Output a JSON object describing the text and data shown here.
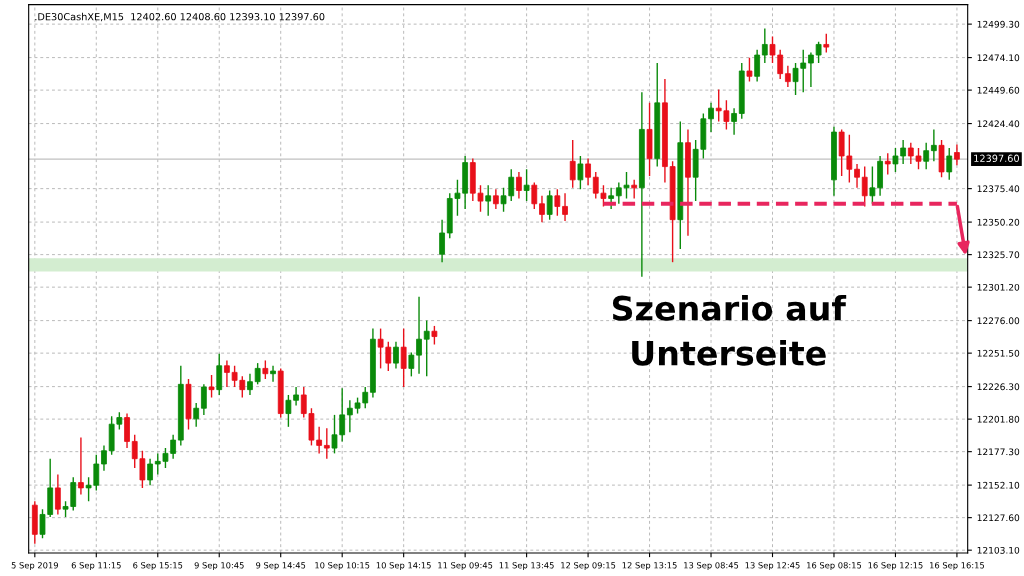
{
  "chart_data": {
    "type": "candlestick",
    "title": ".DE30CashXE,M15  12402.60 12408.60 12393.10 12397.60",
    "categories": [
      "5 Sep 2019",
      null,
      null,
      null,
      null,
      null,
      null,
      null,
      "6 Sep 11:15",
      null,
      null,
      null,
      null,
      null,
      null,
      null,
      "6 Sep 15:15",
      null,
      null,
      null,
      null,
      null,
      null,
      null,
      "9 Sep 10:45",
      null,
      null,
      null,
      null,
      null,
      null,
      null,
      "9 Sep 14:45",
      null,
      null,
      null,
      null,
      null,
      null,
      null,
      "10 Sep 10:15",
      null,
      null,
      null,
      null,
      null,
      null,
      null,
      "10 Sep 14:15",
      null,
      null,
      null,
      null,
      null,
      null,
      null,
      "11 Sep 09:45",
      null,
      null,
      null,
      null,
      null,
      null,
      null,
      "11 Sep 13:45",
      null,
      null,
      null,
      null,
      null,
      null,
      null,
      "12 Sep 09:15",
      null,
      null,
      null,
      null,
      null,
      null,
      null,
      "12 Sep 13:15",
      null,
      null,
      null,
      null,
      null,
      null,
      null,
      "13 Sep 08:45",
      null,
      null,
      null,
      null,
      null,
      null,
      null,
      "13 Sep 12:45",
      null,
      null,
      null,
      null,
      null,
      null,
      null,
      "16 Sep 08:15",
      null,
      null,
      null,
      null,
      null,
      null,
      null,
      "16 Sep 12:15",
      null,
      null,
      null,
      null,
      null,
      null,
      null,
      "16 Sep 16:15"
    ],
    "ohlc": [
      [
        12137,
        12140,
        12108,
        12115
      ],
      [
        12115,
        12134,
        12112,
        12130
      ],
      [
        12130,
        12172,
        12128,
        12150
      ],
      [
        12150,
        12160,
        12130,
        12134
      ],
      [
        12134,
        12140,
        12128,
        12136
      ],
      [
        12136,
        12158,
        12133,
        12154
      ],
      [
        12154,
        12188,
        12145,
        12150
      ],
      [
        12150,
        12158,
        12140,
        12152
      ],
      [
        12152,
        12175,
        12148,
        12168
      ],
      [
        12168,
        12182,
        12163,
        12178
      ],
      [
        12178,
        12204,
        12175,
        12198
      ],
      [
        12198,
        12207,
        12194,
        12203
      ],
      [
        12203,
        12206,
        12180,
        12185
      ],
      [
        12185,
        12190,
        12165,
        12172
      ],
      [
        12172,
        12178,
        12150,
        12156
      ],
      [
        12156,
        12172,
        12152,
        12168
      ],
      [
        12168,
        12176,
        12160,
        12170
      ],
      [
        12170,
        12180,
        12165,
        12176
      ],
      [
        12176,
        12190,
        12172,
        12186
      ],
      [
        12186,
        12242,
        12182,
        12228
      ],
      [
        12228,
        12232,
        12194,
        12202
      ],
      [
        12202,
        12214,
        12196,
        12210
      ],
      [
        12210,
        12228,
        12205,
        12226
      ],
      [
        12226,
        12235,
        12218,
        12224
      ],
      [
        12224,
        12251,
        12220,
        12242
      ],
      [
        12242,
        12246,
        12226,
        12237
      ],
      [
        12237,
        12242,
        12226,
        12231
      ],
      [
        12231,
        12234,
        12218,
        12224
      ],
      [
        12224,
        12236,
        12220,
        12230
      ],
      [
        12230,
        12244,
        12228,
        12240
      ],
      [
        12240,
        12246,
        12232,
        12236
      ],
      [
        12236,
        12242,
        12230,
        12238
      ],
      [
        12238,
        12240,
        12203,
        12206
      ],
      [
        12206,
        12220,
        12196,
        12216
      ],
      [
        12216,
        12226,
        12212,
        12220
      ],
      [
        12220,
        12226,
        12203,
        12206
      ],
      [
        12206,
        12210,
        12182,
        12186
      ],
      [
        12186,
        12196,
        12176,
        12182
      ],
      [
        12182,
        12195,
        12172,
        12180
      ],
      [
        12180,
        12205,
        12176,
        12190
      ],
      [
        12190,
        12225,
        12185,
        12205
      ],
      [
        12205,
        12216,
        12192,
        12210
      ],
      [
        12210,
        12218,
        12206,
        12214
      ],
      [
        12214,
        12226,
        12210,
        12222
      ],
      [
        12222,
        12270,
        12218,
        12262
      ],
      [
        12262,
        12270,
        12240,
        12256
      ],
      [
        12256,
        12260,
        12238,
        12244
      ],
      [
        12244,
        12260,
        12240,
        12256
      ],
      [
        12256,
        12270,
        12226,
        12240
      ],
      [
        12240,
        12252,
        12234,
        12250
      ],
      [
        12250,
        12294,
        12236,
        12262
      ],
      [
        12262,
        12276,
        12234,
        12268
      ],
      [
        12268,
        12272,
        12258,
        12264
      ],
      [
        12326,
        12352,
        12320,
        12342
      ],
      [
        12342,
        12372,
        12338,
        12368
      ],
      [
        12368,
        12382,
        12355,
        12372
      ],
      [
        12372,
        12400,
        12360,
        12395
      ],
      [
        12395,
        12398,
        12366,
        12372
      ],
      [
        12372,
        12378,
        12358,
        12366
      ],
      [
        12366,
        12378,
        12355,
        12370
      ],
      [
        12370,
        12375,
        12360,
        12364
      ],
      [
        12364,
        12376,
        12358,
        12370
      ],
      [
        12370,
        12390,
        12366,
        12384
      ],
      [
        12384,
        12388,
        12368,
        12374
      ],
      [
        12374,
        12390,
        12366,
        12378
      ],
      [
        12378,
        12380,
        12360,
        12364
      ],
      [
        12364,
        12370,
        12350,
        12356
      ],
      [
        12356,
        12374,
        12352,
        12370
      ],
      [
        12370,
        12375,
        12355,
        12362
      ],
      [
        12362,
        12372,
        12351,
        12356
      ],
      [
        12396,
        12412,
        12376,
        12382
      ],
      [
        12382,
        12400,
        12375,
        12394
      ],
      [
        12394,
        12398,
        12378,
        12384
      ],
      [
        12384,
        12388,
        12368,
        12372
      ],
      [
        12372,
        12378,
        12362,
        12368
      ],
      [
        12368,
        12376,
        12360,
        12370
      ],
      [
        12370,
        12380,
        12364,
        12376
      ],
      [
        12376,
        12388,
        12368,
        12378
      ],
      [
        12378,
        12382,
        12368,
        12376
      ],
      [
        12376,
        12448,
        12309,
        12420
      ],
      [
        12420,
        12440,
        12385,
        12398
      ],
      [
        12398,
        12470,
        12392,
        12440
      ],
      [
        12440,
        12458,
        12380,
        12392
      ],
      [
        12392,
        12396,
        12320,
        12352
      ],
      [
        12352,
        12426,
        12330,
        12410
      ],
      [
        12410,
        12420,
        12340,
        12384
      ],
      [
        12384,
        12412,
        12366,
        12405
      ],
      [
        12405,
        12432,
        12398,
        12428
      ],
      [
        12428,
        12440,
        12418,
        12436
      ],
      [
        12436,
        12450,
        12426,
        12434
      ],
      [
        12434,
        12442,
        12420,
        12426
      ],
      [
        12426,
        12436,
        12416,
        12432
      ],
      [
        12432,
        12470,
        12428,
        12464
      ],
      [
        12464,
        12474,
        12456,
        12460
      ],
      [
        12460,
        12480,
        12456,
        12476
      ],
      [
        12476,
        12496,
        12470,
        12484
      ],
      [
        12484,
        12490,
        12470,
        12476
      ],
      [
        12476,
        12480,
        12458,
        12462
      ],
      [
        12462,
        12468,
        12452,
        12456
      ],
      [
        12456,
        12470,
        12446,
        12466
      ],
      [
        12466,
        12480,
        12448,
        12470
      ],
      [
        12470,
        12478,
        12452,
        12476
      ],
      [
        12476,
        12486,
        12470,
        12484
      ],
      [
        12484,
        12492,
        12478,
        12482
      ],
      [
        12382,
        12422,
        12370,
        12418
      ],
      [
        12418,
        12420,
        12385,
        12400
      ],
      [
        12400,
        12416,
        12380,
        12390
      ],
      [
        12390,
        12394,
        12376,
        12384
      ],
      [
        12384,
        12392,
        12362,
        12370
      ],
      [
        12370,
        12392,
        12364,
        12376
      ],
      [
        12376,
        12400,
        12370,
        12396
      ],
      [
        12396,
        12402,
        12386,
        12394
      ],
      [
        12394,
        12406,
        12388,
        12400
      ],
      [
        12400,
        12412,
        12394,
        12406
      ],
      [
        12406,
        12410,
        12394,
        12400
      ],
      [
        12400,
        12406,
        12390,
        12396
      ],
      [
        12396,
        12410,
        12390,
        12404
      ],
      [
        12404,
        12420,
        12396,
        12408
      ],
      [
        12408,
        12412,
        12384,
        12388
      ],
      [
        12388,
        12406,
        12382,
        12400
      ],
      [
        12402.6,
        12408.6,
        12393.1,
        12397.6
      ]
    ],
    "colors": [
      "#e8101a",
      "#0a8a0a",
      "#0a8a0a",
      "#e8101a",
      "#0a8a0a",
      "#0a8a0a",
      "#e8101a",
      "#0a8a0a",
      "#0a8a0a",
      "#0a8a0a",
      "#0a8a0a",
      "#0a8a0a",
      "#e8101a",
      "#e8101a",
      "#e8101a",
      "#0a8a0a",
      "#0a8a0a",
      "#0a8a0a",
      "#0a8a0a",
      "#0a8a0a",
      "#e8101a",
      "#0a8a0a",
      "#0a8a0a",
      "#e8101a",
      "#0a8a0a",
      "#e8101a",
      "#e8101a",
      "#e8101a",
      "#0a8a0a",
      "#0a8a0a",
      "#e8101a",
      "#0a8a0a",
      "#e8101a",
      "#0a8a0a",
      "#0a8a0a",
      "#e8101a",
      "#e8101a",
      "#e8101a",
      "#e8101a",
      "#0a8a0a",
      "#0a8a0a",
      "#0a8a0a",
      "#0a8a0a",
      "#0a8a0a",
      "#0a8a0a",
      "#e8101a",
      "#e8101a",
      "#0a8a0a",
      "#e8101a",
      "#0a8a0a",
      "#0a8a0a",
      "#0a8a0a",
      "#e8101a",
      "#0a8a0a",
      "#0a8a0a",
      "#0a8a0a",
      "#0a8a0a",
      "#e8101a",
      "#e8101a",
      "#0a8a0a",
      "#e8101a",
      "#0a8a0a",
      "#0a8a0a",
      "#e8101a",
      "#0a8a0a",
      "#e8101a",
      "#e8101a",
      "#0a8a0a",
      "#e8101a",
      "#e8101a",
      "#e8101a",
      "#0a8a0a",
      "#e8101a",
      "#e8101a",
      "#e8101a",
      "#0a8a0a",
      "#0a8a0a",
      "#0a8a0a",
      "#e8101a",
      "#0a8a0a",
      "#e8101a",
      "#0a8a0a",
      "#e8101a",
      "#e8101a",
      "#0a8a0a",
      "#e8101a",
      "#0a8a0a",
      "#0a8a0a",
      "#0a8a0a",
      "#e8101a",
      "#e8101a",
      "#0a8a0a",
      "#0a8a0a",
      "#e8101a",
      "#0a8a0a",
      "#0a8a0a",
      "#e8101a",
      "#e8101a",
      "#e8101a",
      "#0a8a0a",
      "#0a8a0a",
      "#0a8a0a",
      "#0a8a0a",
      "#e8101a",
      "#0a8a0a",
      "#e8101a",
      "#e8101a",
      "#e8101a",
      "#e8101a",
      "#0a8a0a",
      "#0a8a0a",
      "#e8101a",
      "#0a8a0a",
      "#0a8a0a",
      "#e8101a",
      "#e8101a",
      "#0a8a0a",
      "#0a8a0a",
      "#e8101a",
      "#0a8a0a",
      "#e8101a"
    ],
    "series": [
      {
        "type": "line",
        "color": "#e8265e",
        "line_style": "dashed",
        "values": [
          null,
          null,
          null,
          null,
          null,
          null,
          null,
          null,
          null,
          null,
          null,
          null,
          null,
          null,
          null,
          null,
          null,
          null,
          null,
          null,
          null,
          null,
          null,
          null,
          null,
          null,
          null,
          null,
          null,
          null,
          null,
          null,
          null,
          null,
          null,
          null,
          null,
          null,
          null,
          null,
          null,
          null,
          null,
          null,
          null,
          null,
          null,
          null,
          null,
          null,
          null,
          null,
          null,
          null,
          null,
          null,
          null,
          null,
          null,
          null,
          null,
          null,
          null,
          null,
          null,
          null,
          null,
          null,
          null,
          null,
          null,
          null,
          null,
          null,
          12364,
          12364,
          12364,
          12364,
          12364,
          12364,
          12364,
          12364,
          12364,
          12364,
          12364,
          12364,
          12364,
          12364,
          12364,
          12364,
          12364,
          12364,
          12364,
          12364,
          12364,
          12364,
          12364,
          12364,
          12364,
          12364,
          12364,
          12364,
          12364,
          12364,
          12364,
          12364,
          12364,
          12364,
          12364,
          12364,
          12364,
          12364,
          12364,
          12364,
          12364,
          12364,
          12364,
          12364,
          12364,
          12364,
          12364
        ]
      }
    ],
    "ylim": [
      12101,
      12514
    ],
    "yticks": [
      {
        "value": 12103.1,
        "label": "12103.10"
      },
      {
        "value": 12127.6,
        "label": "12127.60"
      },
      {
        "value": 12152.1,
        "label": "12152.10"
      },
      {
        "value": 12177.3,
        "label": "12177.30"
      },
      {
        "value": 12201.8,
        "label": "12201.80"
      },
      {
        "value": 12226.3,
        "label": "12226.30"
      },
      {
        "value": 12251.5,
        "label": "12251.50"
      },
      {
        "value": 12276.0,
        "label": "12276.00"
      },
      {
        "value": 12301.2,
        "label": "12301.20"
      },
      {
        "value": 12325.7,
        "label": "12325.70"
      },
      {
        "value": 12350.2,
        "label": "12350.20"
      },
      {
        "value": 12375.4,
        "label": "12375.40"
      },
      {
        "value": 12424.4,
        "label": "12424.40"
      },
      {
        "value": 12449.6,
        "label": "12449.60"
      },
      {
        "value": 12474.1,
        "label": "12474.10"
      },
      {
        "value": 12499.3,
        "label": "12499.30"
      }
    ],
    "bands": [
      {
        "axis": "y",
        "from": 12313,
        "to": 12323,
        "color": "#d3edd0"
      }
    ],
    "ref_lines": [
      {
        "axis": "y",
        "value": 12397.6,
        "label": "12397.60",
        "color": "#c0c0c0"
      }
    ],
    "annotations": [
      "Szenario auf Unterseite"
    ],
    "grid": true
  }
}
